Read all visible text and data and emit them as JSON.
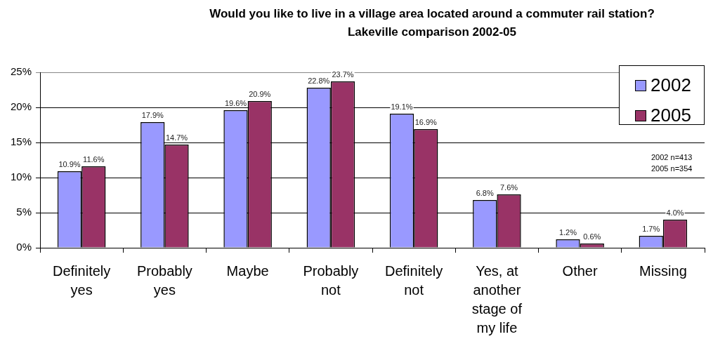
{
  "chart_data": {
    "type": "bar",
    "title": "Would you like to live in a village area located around a commuter rail station?",
    "subtitle": "Lakeville comparison 2002-05",
    "categories": [
      "Definitely yes",
      "Probably yes",
      "Maybe",
      "Probably not",
      "Definitely not",
      "Yes, at another stage of my life",
      "Other",
      "Missing"
    ],
    "series": [
      {
        "name": "2002",
        "color": "#9999ff",
        "values": [
          10.9,
          17.9,
          19.6,
          22.8,
          19.1,
          6.8,
          1.2,
          1.7
        ],
        "value_labels": [
          "10.9%",
          "17.9%",
          "19.6%",
          "22.8%",
          "19.1%",
          "6.8%",
          "1.2%",
          "1.7%"
        ]
      },
      {
        "name": "2005",
        "color": "#993366",
        "values": [
          11.6,
          14.7,
          20.9,
          23.7,
          16.9,
          7.6,
          0.6,
          4.0
        ],
        "value_labels": [
          "11.6%",
          "14.7%",
          "20.9%",
          "23.7%",
          "16.9%",
          "7.6%",
          "0.6%",
          "4.0%"
        ]
      }
    ],
    "ylim": [
      0,
      25
    ],
    "yticks": [
      {
        "value": 0,
        "label": "0%"
      },
      {
        "value": 5,
        "label": "5%"
      },
      {
        "value": 10,
        "label": "10%"
      },
      {
        "value": 15,
        "label": "15%"
      },
      {
        "value": 20,
        "label": "20%"
      },
      {
        "value": 25,
        "label": "25%"
      }
    ],
    "grid": "y",
    "legend": "top right",
    "annotations": [
      "2002 n=413",
      "2005 n=354"
    ]
  }
}
